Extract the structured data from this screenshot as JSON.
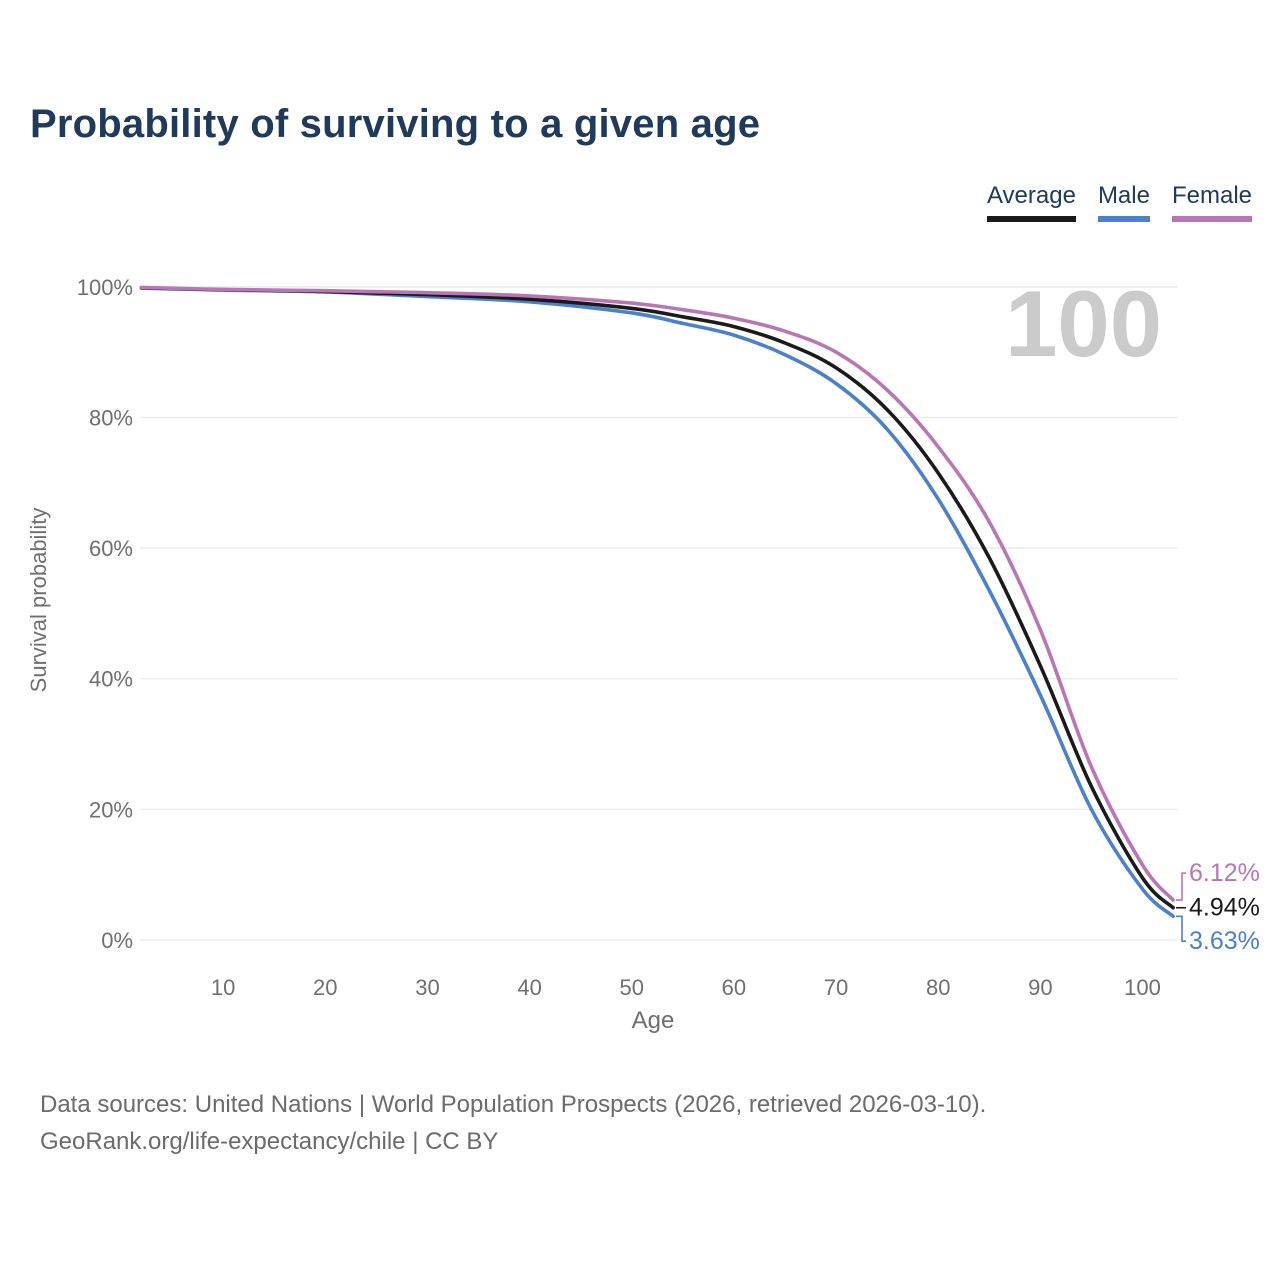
{
  "title": "Probability of surviving to a given age",
  "legend": [
    {
      "label": "Average",
      "color": "#1a1a1a"
    },
    {
      "label": "Male",
      "color": "#4c80cc"
    },
    {
      "label": "Female",
      "color": "#b976b5"
    }
  ],
  "watermark": "100",
  "chart_data": {
    "type": "line",
    "title": "Probability of surviving to a given age",
    "xlabel": "Age",
    "ylabel": "Survival probability",
    "xlim": [
      0,
      103
    ],
    "ylim": [
      0,
      100
    ],
    "grid": "horizontal",
    "legend_position": "top-right",
    "xticks": [
      10,
      20,
      30,
      40,
      50,
      60,
      70,
      80,
      90,
      100
    ],
    "ytick_percents": [
      0,
      20,
      40,
      60,
      80,
      100
    ],
    "ytick_labels": [
      "0%",
      "20%",
      "40%",
      "60%",
      "80%",
      "100%"
    ],
    "x": [
      2,
      10,
      20,
      30,
      40,
      50,
      55,
      60,
      65,
      70,
      75,
      80,
      85,
      90,
      95,
      100,
      103
    ],
    "series": [
      {
        "name": "Male",
        "color": "#4c80cc",
        "end_label": "3.63%",
        "values": [
          99.8,
          99.5,
          99.2,
          98.5,
          97.7,
          96.0,
          94.4,
          92.6,
          89.6,
          85.2,
          78.2,
          67.5,
          53.5,
          37.5,
          20.0,
          7.8,
          3.63
        ]
      },
      {
        "name": "Average",
        "color": "#1a1a1a",
        "end_label": "4.94%",
        "values": [
          99.85,
          99.55,
          99.3,
          98.8,
          98.1,
          96.7,
          95.4,
          93.9,
          91.4,
          87.6,
          81.2,
          71.5,
          58.5,
          42.0,
          23.5,
          9.5,
          4.94
        ]
      },
      {
        "name": "Female",
        "color": "#b976b5",
        "end_label": "6.12%",
        "values": [
          99.9,
          99.6,
          99.4,
          99.1,
          98.6,
          97.5,
          96.5,
          95.2,
          93.2,
          90.0,
          84.2,
          75.5,
          64.0,
          47.5,
          26.5,
          11.5,
          6.12
        ]
      }
    ]
  },
  "footer": {
    "line1": "Data sources: United Nations | World Population Prospects (2026, retrieved 2026-03-10).",
    "line2": "GeoRank.org/life-expectancy/chile | CC BY"
  }
}
